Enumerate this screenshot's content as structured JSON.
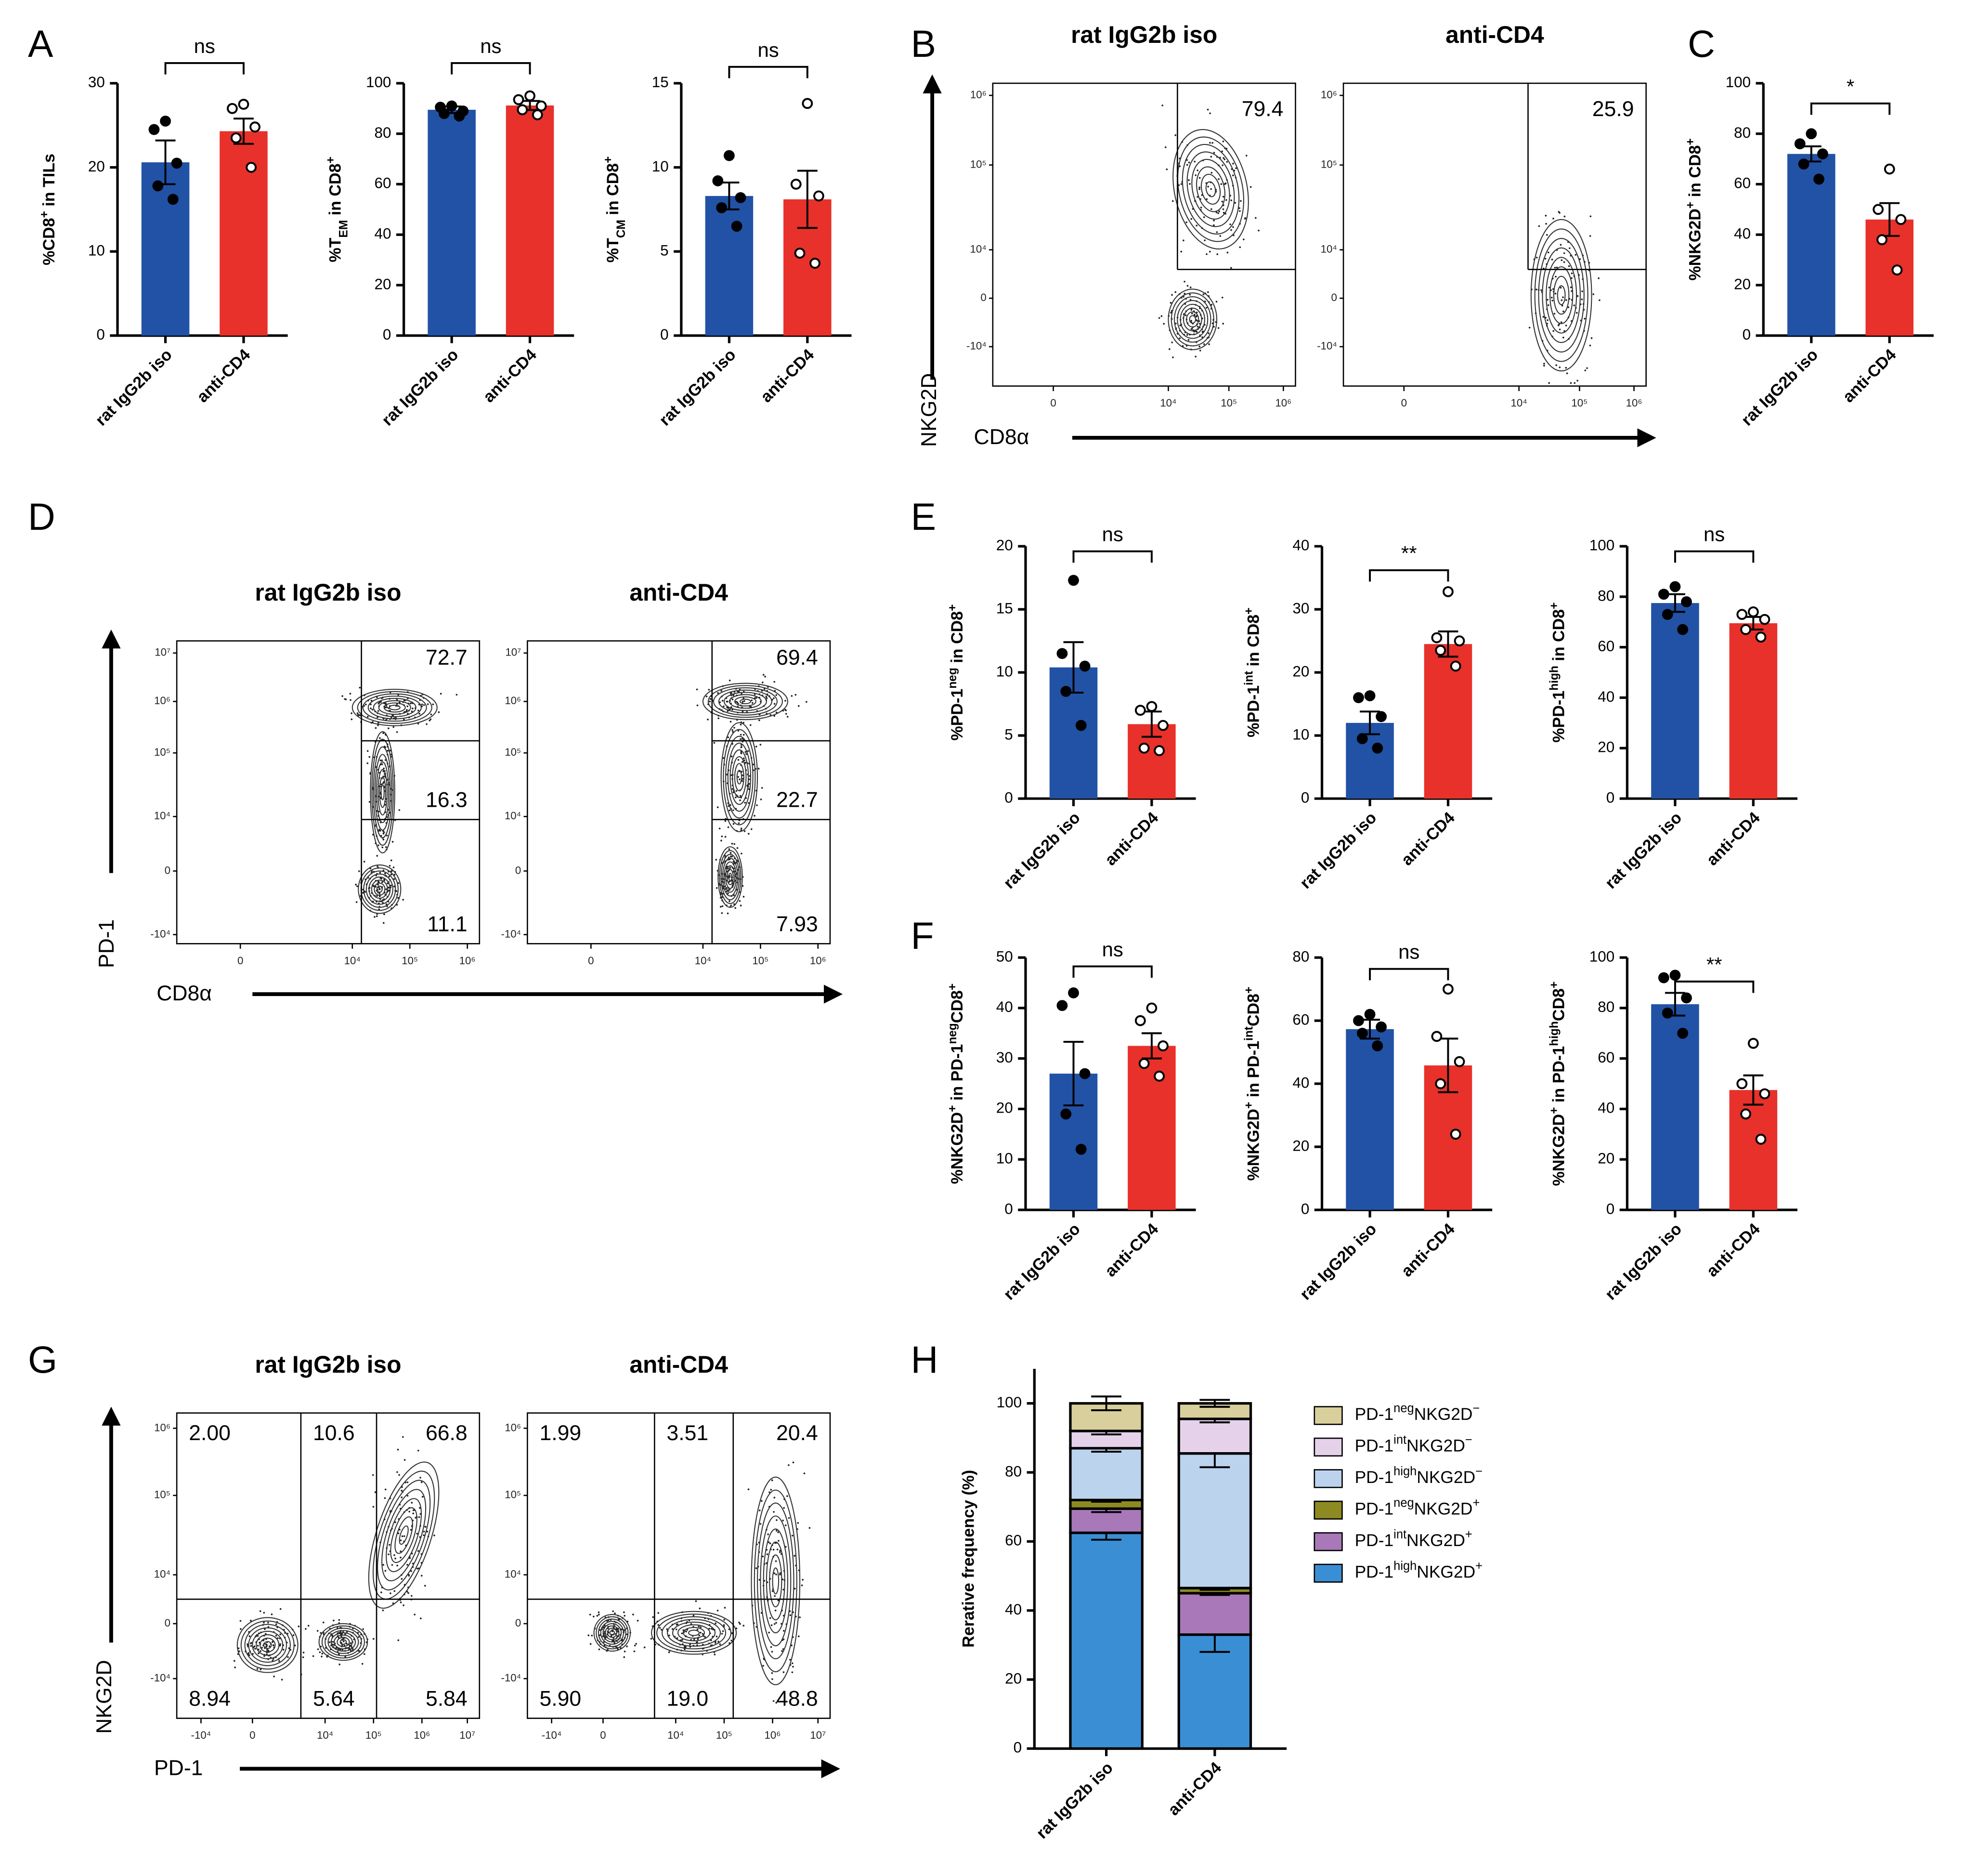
{
  "panel_letters": [
    "A",
    "B",
    "C",
    "D",
    "E",
    "F",
    "G",
    "H"
  ],
  "chart_data": [
    {
      "type": "bar",
      "ylabel": [
        {
          "text": "%CD8"
        },
        {
          "text": "+",
          "shift": "sup"
        },
        {
          "text": " in TILs"
        }
      ],
      "categories": [
        "rat IgG2b iso",
        "anti-CD4"
      ],
      "values": [
        20.6,
        24.3
      ],
      "errors": [
        2.6,
        1.5
      ],
      "points": [
        [
          25.5,
          24.5,
          20.5,
          17.8,
          16.2
        ],
        [
          27.5,
          27,
          24.8,
          23.5,
          20
        ]
      ],
      "colors": [
        "#2152a5",
        "#e8312a"
      ],
      "ylim": [
        0,
        30
      ],
      "yticks": [
        0,
        10,
        20,
        30
      ],
      "significance": "ns"
    },
    {
      "type": "bar",
      "ylabel": [
        {
          "text": "%T"
        },
        {
          "text": "EM",
          "shift": "sub"
        },
        {
          "text": " in CD8"
        },
        {
          "text": "+",
          "shift": "sup"
        }
      ],
      "categories": [
        "rat IgG2b iso",
        "anti-CD4"
      ],
      "values": [
        89.5,
        91.2
      ],
      "errors": [
        1.3,
        1.8
      ],
      "points": [
        [
          91,
          90.5,
          89,
          88,
          87
        ],
        [
          95,
          93.5,
          91,
          89.5,
          87.5
        ]
      ],
      "colors": [
        "#2152a5",
        "#e8312a"
      ],
      "ylim": [
        0,
        100
      ],
      "yticks": [
        0,
        20,
        40,
        60,
        80,
        100
      ],
      "significance": "ns"
    },
    {
      "type": "bar",
      "ylabel": [
        {
          "text": "%T"
        },
        {
          "text": "CM",
          "shift": "sub"
        },
        {
          "text": " in CD8"
        },
        {
          "text": "+",
          "shift": "sup"
        }
      ],
      "categories": [
        "rat IgG2b iso",
        "anti-CD4"
      ],
      "values": [
        8.3,
        8.1
      ],
      "errors": [
        0.8,
        1.7
      ],
      "points": [
        [
          10.7,
          9.2,
          8.2,
          7.6,
          6.5
        ],
        [
          13.8,
          9,
          8.3,
          4.9,
          4.3
        ]
      ],
      "colors": [
        "#2152a5",
        "#e8312a"
      ],
      "ylim": [
        0,
        15
      ],
      "yticks": [
        0,
        5,
        10,
        15
      ],
      "significance": "ns"
    },
    {
      "type": "bar",
      "ylabel": [
        {
          "text": "%NKG2D"
        },
        {
          "text": "+",
          "shift": "sup"
        },
        {
          "text": " in CD8"
        },
        {
          "text": "+",
          "shift": "sup"
        }
      ],
      "categories": [
        "rat IgG2b iso",
        "anti-CD4"
      ],
      "values": [
        72,
        46
      ],
      "errors": [
        3,
        6.5
      ],
      "points": [
        [
          80,
          76,
          72,
          68,
          62
        ],
        [
          66,
          50,
          46,
          38,
          26
        ]
      ],
      "colors": [
        "#2152a5",
        "#e8312a"
      ],
      "ylim": [
        0,
        100
      ],
      "yticks": [
        0,
        20,
        40,
        60,
        80,
        100
      ],
      "significance": "*"
    },
    {
      "type": "bar",
      "ylabel": [
        {
          "text": "%PD-1"
        },
        {
          "text": "neg",
          "shift": "sup"
        },
        {
          "text": " in CD8"
        },
        {
          "text": "+",
          "shift": "sup"
        }
      ],
      "categories": [
        "rat IgG2b iso",
        "anti-CD4"
      ],
      "values": [
        10.4,
        5.9
      ],
      "errors": [
        2,
        1
      ],
      "points": [
        [
          17.3,
          11.5,
          10.5,
          8.5,
          5.8
        ],
        [
          7.3,
          7,
          5.8,
          4,
          3.8
        ]
      ],
      "colors": [
        "#2152a5",
        "#e8312a"
      ],
      "ylim": [
        0,
        20
      ],
      "yticks": [
        0,
        5,
        10,
        15,
        20
      ],
      "significance": "ns"
    },
    {
      "type": "bar",
      "ylabel": [
        {
          "text": "%PD-1"
        },
        {
          "text": "int",
          "shift": "sup"
        },
        {
          "text": " in CD8"
        },
        {
          "text": "+",
          "shift": "sup"
        }
      ],
      "categories": [
        "rat IgG2b iso",
        "anti-CD4"
      ],
      "values": [
        12,
        24.5
      ],
      "errors": [
        1.8,
        2
      ],
      "points": [
        [
          16.3,
          16,
          13,
          9.5,
          8
        ],
        [
          32.8,
          25.5,
          25,
          23.5,
          21
        ]
      ],
      "colors": [
        "#2152a5",
        "#e8312a"
      ],
      "ylim": [
        0,
        40
      ],
      "yticks": [
        0,
        10,
        20,
        30,
        40
      ],
      "significance": "**"
    },
    {
      "type": "bar",
      "ylabel": [
        {
          "text": "%PD-1"
        },
        {
          "text": "high",
          "shift": "sup"
        },
        {
          "text": " in CD8"
        },
        {
          "text": "+",
          "shift": "sup"
        }
      ],
      "categories": [
        "rat IgG2b iso",
        "anti-CD4"
      ],
      "values": [
        77.5,
        69.5
      ],
      "errors": [
        3.5,
        2.5
      ],
      "points": [
        [
          84,
          81,
          78,
          73,
          67
        ],
        [
          74,
          73,
          71,
          67,
          64
        ]
      ],
      "colors": [
        "#2152a5",
        "#e8312a"
      ],
      "ylim": [
        0,
        100
      ],
      "yticks": [
        0,
        20,
        40,
        60,
        80,
        100
      ],
      "significance": "ns"
    },
    {
      "type": "bar",
      "ylabel": [
        {
          "text": "%NKG2D"
        },
        {
          "text": "+",
          "shift": "sup"
        },
        {
          "text": " in PD-1"
        },
        {
          "text": "neg",
          "shift": "sup"
        },
        {
          "text": "CD8"
        },
        {
          "text": "+",
          "shift": "sup"
        }
      ],
      "categories": [
        "rat IgG2b iso",
        "anti-CD4"
      ],
      "values": [
        27,
        32.5
      ],
      "errors": [
        6.3,
        2.5
      ],
      "points": [
        [
          43,
          40.5,
          27,
          19,
          12
        ],
        [
          40,
          37.5,
          32.5,
          29,
          26.5
        ]
      ],
      "colors": [
        "#2152a5",
        "#e8312a"
      ],
      "ylim": [
        0,
        50
      ],
      "yticks": [
        0,
        10,
        20,
        30,
        40,
        50
      ],
      "significance": "ns"
    },
    {
      "type": "bar",
      "ylabel": [
        {
          "text": "%NKG2D"
        },
        {
          "text": "+",
          "shift": "sup"
        },
        {
          "text": " in PD-1"
        },
        {
          "text": "int",
          "shift": "sup"
        },
        {
          "text": "CD8"
        },
        {
          "text": "+",
          "shift": "sup"
        }
      ],
      "categories": [
        "rat IgG2b iso",
        "anti-CD4"
      ],
      "values": [
        57.3,
        45.8
      ],
      "errors": [
        3,
        8.5
      ],
      "points": [
        [
          62,
          60,
          58,
          56,
          52
        ],
        [
          70,
          55,
          47,
          40,
          24
        ]
      ],
      "colors": [
        "#2152a5",
        "#e8312a"
      ],
      "ylim": [
        0,
        80
      ],
      "yticks": [
        0,
        20,
        40,
        60,
        80
      ],
      "significance": "ns"
    },
    {
      "type": "bar",
      "ylabel": [
        {
          "text": "%NKG2D"
        },
        {
          "text": "+",
          "shift": "sup"
        },
        {
          "text": " in PD-1"
        },
        {
          "text": "high",
          "shift": "sup"
        },
        {
          "text": "CD8"
        },
        {
          "text": "+",
          "shift": "sup"
        }
      ],
      "categories": [
        "rat IgG2b iso",
        "anti-CD4"
      ],
      "values": [
        81.5,
        47.5
      ],
      "errors": [
        4.5,
        5.8
      ],
      "points": [
        [
          93,
          92,
          84,
          78,
          70
        ],
        [
          66,
          50,
          46,
          38,
          28
        ]
      ],
      "colors": [
        "#2152a5",
        "#e8312a"
      ],
      "ylim": [
        0,
        100
      ],
      "yticks": [
        0,
        20,
        40,
        60,
        80,
        100
      ],
      "significance": "**"
    },
    {
      "type": "stacked_bar",
      "ylabel": [
        {
          "text": "Rerative frequency (%)"
        }
      ],
      "categories": [
        "rat IgG2b iso",
        "anti-CD4"
      ],
      "ylim": [
        0,
        110
      ],
      "yticks": [
        0,
        20,
        40,
        60,
        80,
        100
      ],
      "series": [
        {
          "name": [
            {
              "text": "PD-1"
            },
            {
              "text": "high",
              "shift": "sup"
            },
            {
              "text": "NKG2D"
            },
            {
              "text": "+",
              "shift": "sup"
            }
          ],
          "color": "#3a8fd4",
          "values": [
            62.5,
            33
          ],
          "errors": [
            2,
            5
          ]
        },
        {
          "name": [
            {
              "text": "PD-1"
            },
            {
              "text": "int",
              "shift": "sup"
            },
            {
              "text": "NKG2D"
            },
            {
              "text": "+",
              "shift": "sup"
            }
          ],
          "color": "#a878b8",
          "values": [
            7,
            12
          ],
          "errors": [
            1,
            0.5
          ]
        },
        {
          "name": [
            {
              "text": "PD-1"
            },
            {
              "text": "neg",
              "shift": "sup"
            },
            {
              "text": "NKG2D"
            },
            {
              "text": "+",
              "shift": "sup"
            }
          ],
          "color": "#8e8a22",
          "values": [
            2.5,
            1.5
          ],
          "errors": [
            0.5,
            0.5
          ]
        },
        {
          "name": [
            {
              "text": "PD-1"
            },
            {
              "text": "high",
              "shift": "sup"
            },
            {
              "text": "NKG2D"
            },
            {
              "text": "−",
              "shift": "sup"
            }
          ],
          "color": "#bcd3ee",
          "values": [
            15,
            39
          ],
          "errors": [
            1,
            4
          ]
        },
        {
          "name": [
            {
              "text": "PD-1"
            },
            {
              "text": "int",
              "shift": "sup"
            },
            {
              "text": "NKG2D"
            },
            {
              "text": "−",
              "shift": "sup"
            }
          ],
          "color": "#e5d2ea",
          "values": [
            5,
            10
          ],
          "errors": [
            1,
            1
          ]
        },
        {
          "name": [
            {
              "text": "PD-1"
            },
            {
              "text": "neg",
              "shift": "sup"
            },
            {
              "text": "NKG2D"
            },
            {
              "text": "−",
              "shift": "sup"
            }
          ],
          "color": "#d8cf9c",
          "values": [
            8,
            4.5
          ],
          "errors": [
            2,
            1
          ]
        }
      ]
    }
  ],
  "flow_panels": [
    {
      "xlabel": "CD8α",
      "ylabel": "NKG2D",
      "xticks": [
        "0",
        "10⁴",
        "10⁵",
        "10⁶"
      ],
      "yticks": [
        "10⁶",
        "10⁵",
        "10⁴",
        "0",
        "-10⁴"
      ],
      "plots": [
        {
          "title": "rat IgG2b iso",
          "gates": [
            "79.4"
          ]
        },
        {
          "title": "anti-CD4",
          "gates": [
            "25.9"
          ]
        }
      ]
    },
    {
      "xlabel": "CD8α",
      "ylabel": "PD-1",
      "xticks": [
        "0",
        "10⁴",
        "10⁵",
        "10⁶"
      ],
      "yticks": [
        "10⁷",
        "10⁶",
        "10⁵",
        "10⁴",
        "0",
        "-10⁴"
      ],
      "plots": [
        {
          "title": "rat IgG2b iso",
          "gates": [
            "72.7",
            "16.3",
            "11.1"
          ]
        },
        {
          "title": "anti-CD4",
          "gates": [
            "69.4",
            "22.7",
            "7.93"
          ]
        }
      ]
    },
    {
      "xlabel": "PD-1",
      "ylabel": "NKG2D",
      "xticks": [
        "-10⁴",
        "0",
        "10⁴",
        "10⁵",
        "10⁶",
        "10⁷"
      ],
      "yticks": [
        "10⁶",
        "10⁵",
        "10⁴",
        "0",
        "-10⁴"
      ],
      "plots": [
        {
          "title": "rat IgG2b iso",
          "gates": [
            "2.00",
            "10.6",
            "66.8",
            "8.94",
            "5.64",
            "5.84"
          ]
        },
        {
          "title": "anti-CD4",
          "gates": [
            "1.99",
            "3.51",
            "20.4",
            "5.90",
            "19.0",
            "48.8"
          ]
        }
      ]
    }
  ]
}
